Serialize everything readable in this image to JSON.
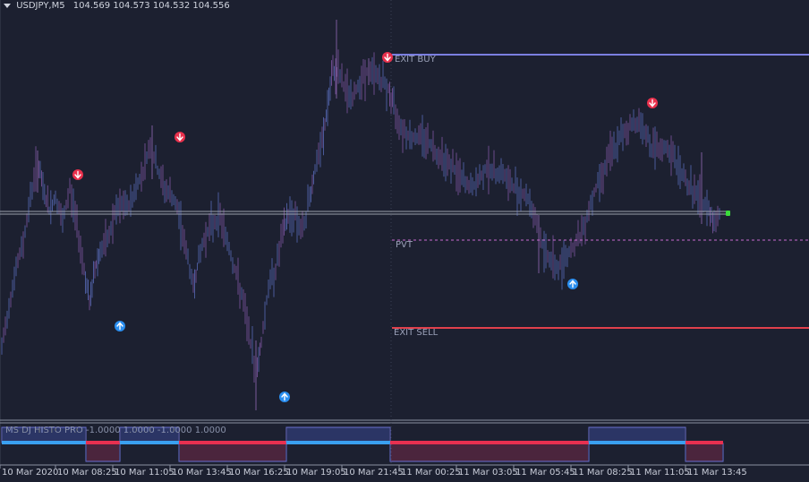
{
  "header": {
    "symbol": "USDJPY,M5",
    "ohlc": "104.569 104.573 104.532 104.556"
  },
  "levels": {
    "exit_buy_label": "EXIT BUY",
    "pvt_label": "PVT",
    "exit_sell_label": "EXIT SELL"
  },
  "indicator": {
    "label": "MS DJ HISTO PRO -1.0000 1.0000 -1.0000 1.0000"
  },
  "time_axis": [
    "10 Mar 2020",
    "10 Mar 08:25",
    "10 Mar 11:05",
    "10 Mar 13:45",
    "10 Mar 16:25",
    "10 Mar 19:05",
    "10 Mar 21:45",
    "11 Mar 00:25",
    "11 Mar 03:05",
    "11 Mar 05:45",
    "11 Mar 08:25",
    "11 Mar 11:05",
    "11 Mar 13:45"
  ],
  "colors": {
    "background": "#1c2030",
    "candle": "#6a4a8a",
    "exit_buy": "#7b7fe0",
    "exit_sell": "#e0404c",
    "pvt": "#c86ad0",
    "sell_arrow": "#e8304c",
    "buy_arrow": "#2a8ef0",
    "histo_up": "#3aa0f0",
    "histo_down": "#e83050"
  },
  "signals": {
    "sell_icon": "arrow-down-circle-icon",
    "buy_icon": "arrow-up-circle-icon"
  }
}
